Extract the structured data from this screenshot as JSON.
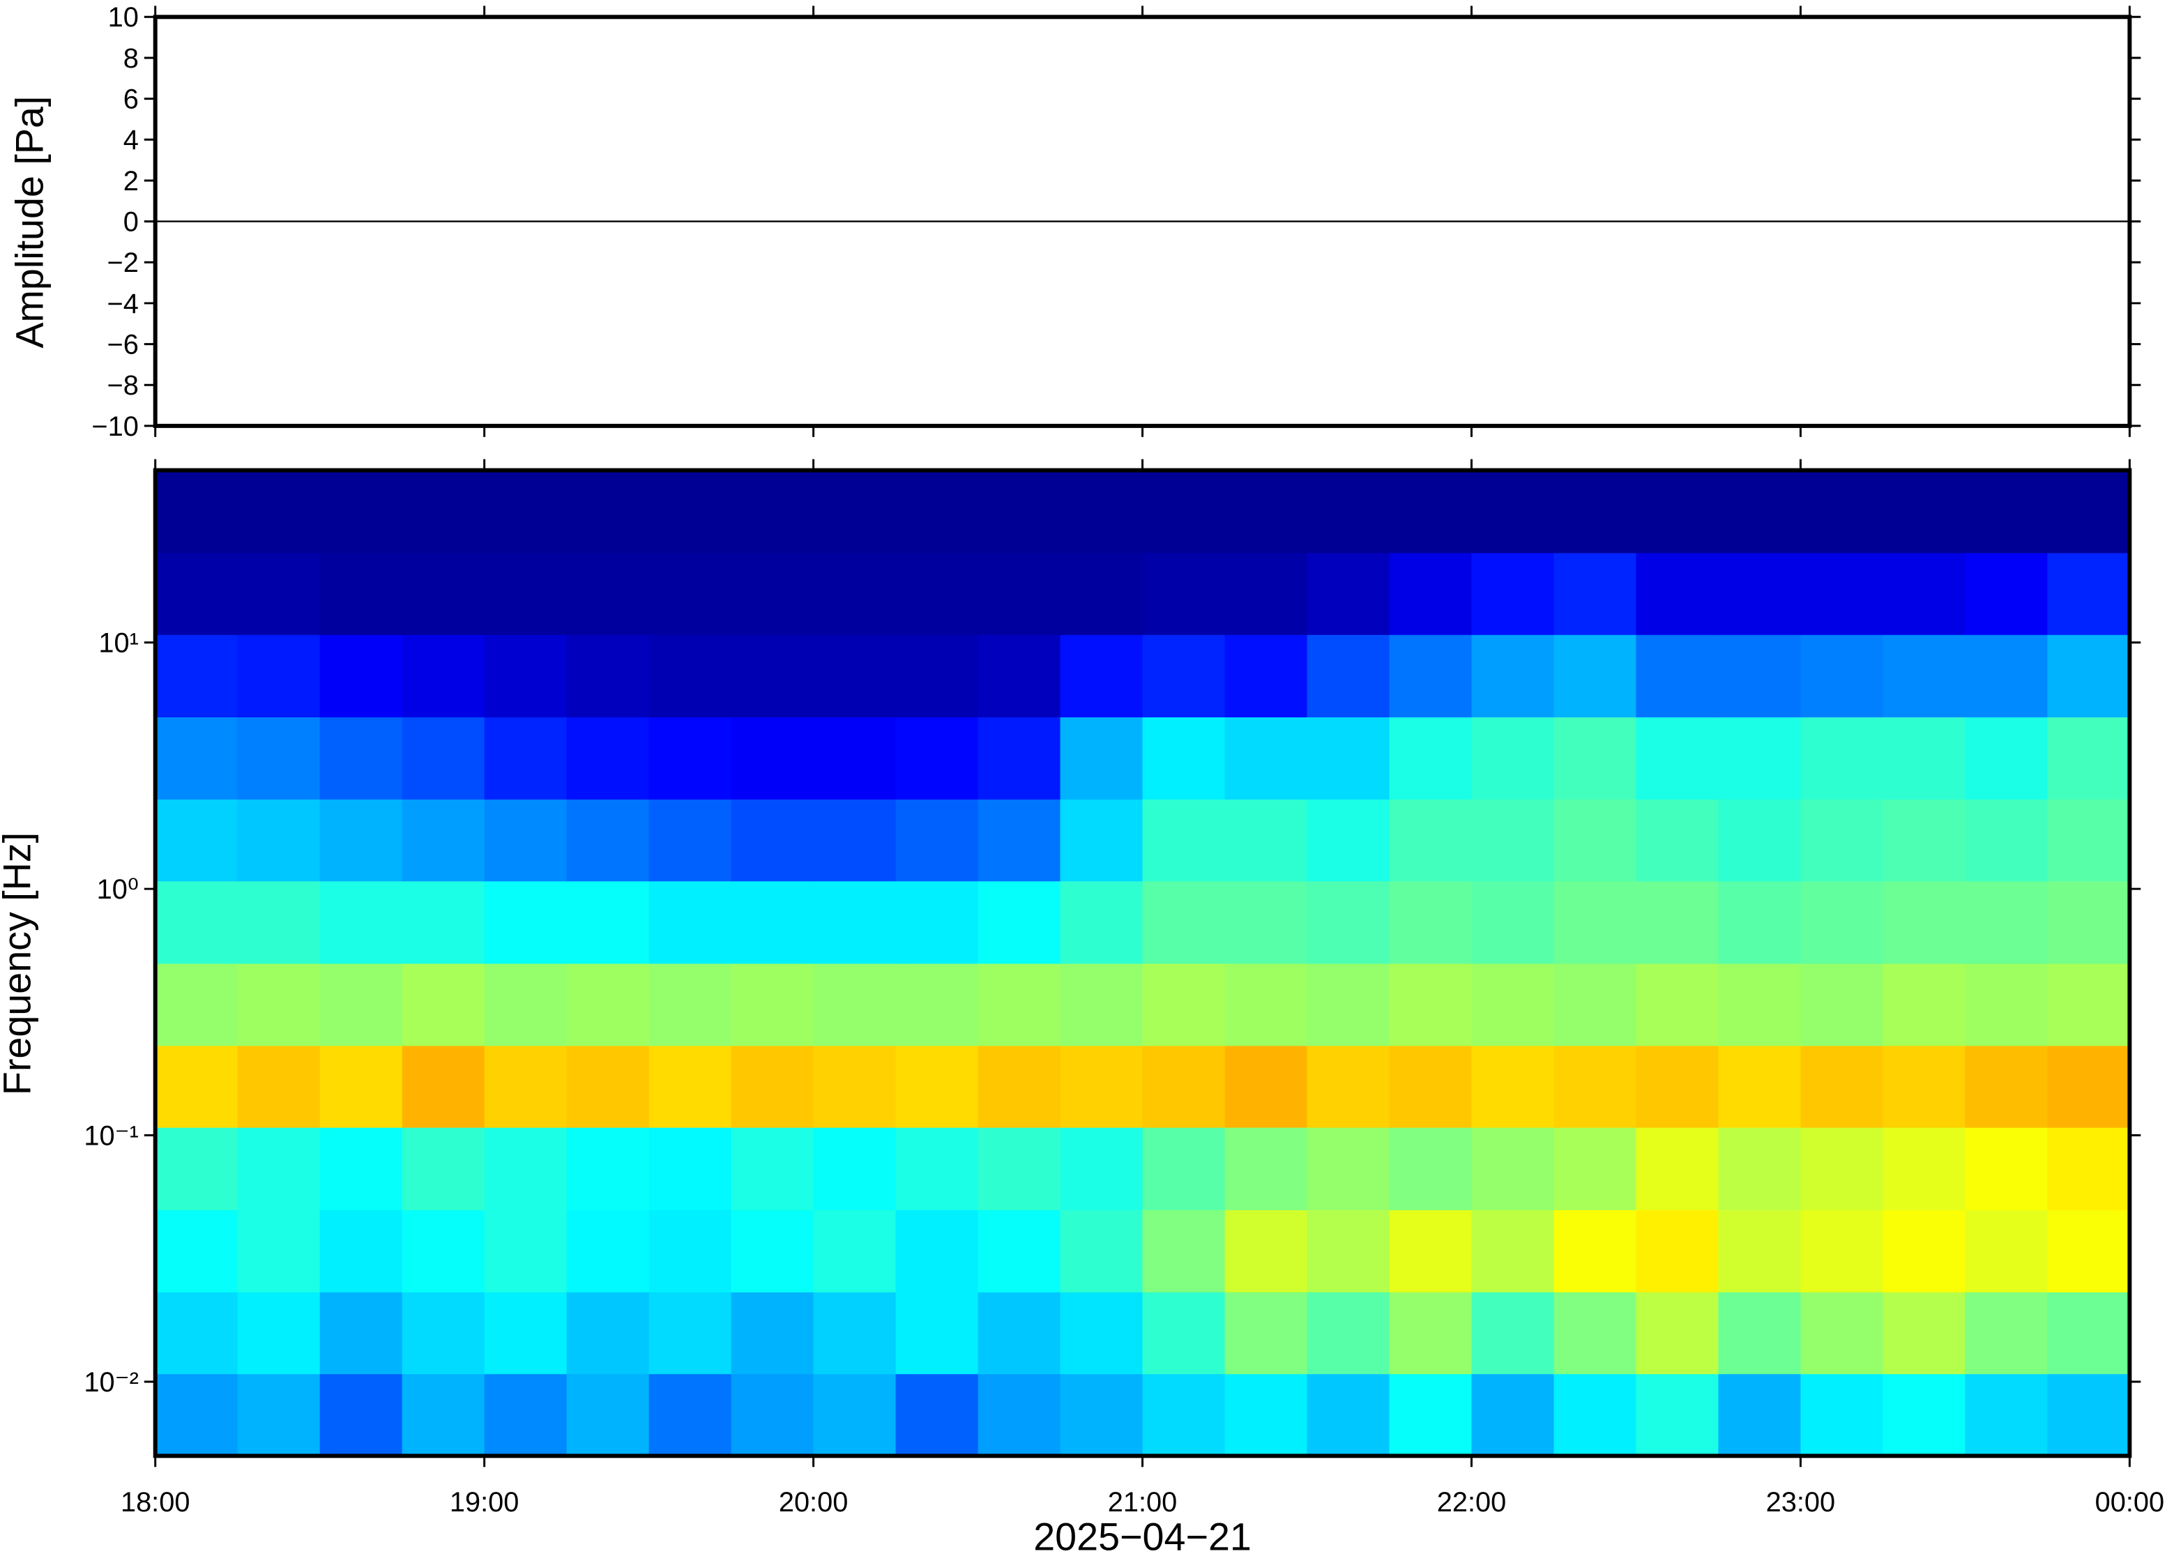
{
  "chart_data": [
    {
      "type": "line",
      "ylabel": "Amplitude [Pa]",
      "xlim": [
        18,
        24
      ],
      "ylim": [
        -10,
        10
      ],
      "yticks": [
        {
          "value": -10,
          "label": "−10"
        },
        {
          "value": -8,
          "label": "−8"
        },
        {
          "value": -6,
          "label": "−6"
        },
        {
          "value": -4,
          "label": "−4"
        },
        {
          "value": -2,
          "label": "−2"
        },
        0,
        2,
        4,
        6,
        8,
        10
      ],
      "color": "#000000",
      "x": [
        18,
        18.25,
        18.5,
        18.75,
        19,
        19.25,
        19.5,
        19.75,
        20,
        20.25,
        20.5,
        20.75,
        21,
        21.25,
        21.5,
        21.75,
        22,
        22.25,
        22.5,
        22.75,
        23,
        23.25,
        23.5,
        23.75,
        24
      ],
      "values": [
        0,
        0,
        0,
        0,
        0,
        0,
        0,
        0,
        0,
        0,
        0,
        0,
        0,
        0,
        0,
        0,
        0,
        0,
        0,
        0,
        0,
        0,
        0,
        0,
        0
      ]
    },
    {
      "type": "heatmap",
      "ylabel": "Frequency [Hz]",
      "xlabel": "2025−04−21",
      "xlim": [
        18,
        24
      ],
      "xticks": [
        {
          "value": 18,
          "label": "18:00"
        },
        {
          "value": 19,
          "label": "19:00"
        },
        {
          "value": 20,
          "label": "20:00"
        },
        {
          "value": 21,
          "label": "21:00"
        },
        {
          "value": 22,
          "label": "22:00"
        },
        {
          "value": 23,
          "label": "23:00"
        },
        {
          "value": 24,
          "label": "00:00"
        }
      ],
      "ylim": [
        0.005,
        50
      ],
      "log_y": true,
      "yticks": [
        {
          "value": 0.01,
          "label": "10⁻²"
        },
        {
          "value": 0.1,
          "label": "10⁻¹"
        },
        {
          "value": 1,
          "label": "10⁰"
        },
        {
          "value": 10,
          "label": "10¹"
        }
      ],
      "colormap": "jet",
      "x_bins": [
        18,
        18.25,
        18.5,
        18.75,
        19,
        19.25,
        19.5,
        19.75,
        20,
        20.25,
        20.5,
        20.75,
        21,
        21.25,
        21.5,
        21.75,
        22,
        22.25,
        22.5,
        22.75,
        23,
        23.25,
        23.5,
        23.75,
        24
      ],
      "y_bins": [
        0.005,
        0.0108,
        0.0232,
        0.05,
        0.108,
        0.232,
        0.5,
        1.08,
        2.32,
        5,
        10.8,
        23.2,
        50
      ],
      "z": [
        [
          0.28,
          0.3,
          0.22,
          0.3,
          0.26,
          0.3,
          0.24,
          0.28,
          0.3,
          0.22,
          0.28,
          0.3,
          0.34,
          0.36,
          0.32,
          0.38,
          0.3,
          0.36,
          0.4,
          0.3,
          0.36,
          0.38,
          0.34,
          0.32
        ],
        [
          0.34,
          0.36,
          0.3,
          0.34,
          0.36,
          0.32,
          0.34,
          0.3,
          0.33,
          0.36,
          0.32,
          0.35,
          0.42,
          0.5,
          0.46,
          0.52,
          0.44,
          0.5,
          0.56,
          0.48,
          0.52,
          0.55,
          0.5,
          0.48
        ],
        [
          0.38,
          0.4,
          0.36,
          0.38,
          0.4,
          0.37,
          0.36,
          0.38,
          0.4,
          0.36,
          0.38,
          0.42,
          0.5,
          0.58,
          0.55,
          0.6,
          0.56,
          0.62,
          0.64,
          0.58,
          0.6,
          0.62,
          0.6,
          0.62
        ],
        [
          0.42,
          0.4,
          0.38,
          0.42,
          0.4,
          0.38,
          0.37,
          0.4,
          0.38,
          0.4,
          0.42,
          0.4,
          0.46,
          0.5,
          0.52,
          0.5,
          0.52,
          0.54,
          0.6,
          0.56,
          0.58,
          0.6,
          0.62,
          0.64
        ],
        [
          0.66,
          0.68,
          0.66,
          0.7,
          0.67,
          0.68,
          0.66,
          0.68,
          0.67,
          0.66,
          0.68,
          0.67,
          0.68,
          0.7,
          0.67,
          0.68,
          0.66,
          0.67,
          0.68,
          0.66,
          0.68,
          0.67,
          0.69,
          0.7
        ],
        [
          0.52,
          0.53,
          0.52,
          0.54,
          0.52,
          0.53,
          0.52,
          0.53,
          0.52,
          0.52,
          0.53,
          0.52,
          0.54,
          0.53,
          0.52,
          0.54,
          0.53,
          0.52,
          0.54,
          0.53,
          0.52,
          0.54,
          0.53,
          0.54
        ],
        [
          0.42,
          0.42,
          0.4,
          0.4,
          0.38,
          0.38,
          0.36,
          0.36,
          0.36,
          0.36,
          0.38,
          0.42,
          0.46,
          0.46,
          0.45,
          0.47,
          0.46,
          0.48,
          0.48,
          0.46,
          0.47,
          0.48,
          0.48,
          0.49
        ],
        [
          0.33,
          0.32,
          0.3,
          0.28,
          0.26,
          0.24,
          0.22,
          0.2,
          0.2,
          0.22,
          0.24,
          0.34,
          0.42,
          0.42,
          0.4,
          0.44,
          0.44,
          0.46,
          0.44,
          0.42,
          0.44,
          0.45,
          0.44,
          0.46
        ],
        [
          0.26,
          0.25,
          0.22,
          0.2,
          0.16,
          0.14,
          0.13,
          0.12,
          0.12,
          0.13,
          0.15,
          0.3,
          0.36,
          0.34,
          0.34,
          0.4,
          0.42,
          0.44,
          0.4,
          0.4,
          0.42,
          0.42,
          0.4,
          0.44
        ],
        [
          0.16,
          0.15,
          0.12,
          0.1,
          0.08,
          0.06,
          0.05,
          0.05,
          0.05,
          0.05,
          0.06,
          0.14,
          0.16,
          0.14,
          0.2,
          0.24,
          0.28,
          0.3,
          0.24,
          0.24,
          0.25,
          0.26,
          0.26,
          0.3
        ],
        [
          0.04,
          0.04,
          0.03,
          0.03,
          0.03,
          0.03,
          0.03,
          0.03,
          0.03,
          0.03,
          0.03,
          0.03,
          0.04,
          0.04,
          0.06,
          0.1,
          0.14,
          0.16,
          0.1,
          0.1,
          0.1,
          0.1,
          0.12,
          0.16
        ],
        [
          0.02,
          0.02,
          0.02,
          0.02,
          0.02,
          0.02,
          0.02,
          0.02,
          0.02,
          0.02,
          0.02,
          0.02,
          0.02,
          0.02,
          0.02,
          0.02,
          0.02,
          0.02,
          0.02,
          0.02,
          0.02,
          0.02,
          0.02,
          0.02
        ]
      ]
    }
  ]
}
